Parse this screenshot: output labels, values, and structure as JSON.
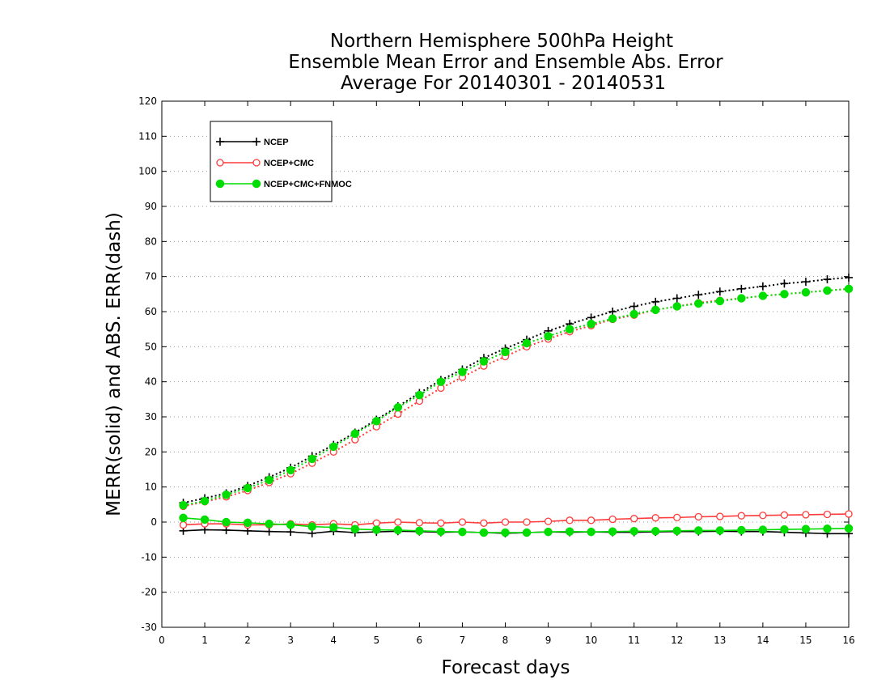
{
  "chart_data": {
    "type": "line",
    "title_lines": [
      "Northern Hemisphere 500hPa Height",
      "Ensemble Mean Error and Ensemble Abs. Error",
      "Average For 20140301 - 20140531"
    ],
    "xlabel": "Forecast days",
    "ylabel": "MERR(solid) and ABS. ERR(dash)",
    "xlim": [
      0,
      16
    ],
    "ylim": [
      -30,
      120
    ],
    "xticks": [
      "0",
      "1",
      "2",
      "3",
      "4",
      "5",
      "6",
      "7",
      "8",
      "9",
      "10",
      "11",
      "12",
      "13",
      "14",
      "15",
      "16"
    ],
    "yticks": [
      "-30",
      "-20",
      "-10",
      "0",
      "10",
      "20",
      "30",
      "40",
      "50",
      "60",
      "70",
      "80",
      "90",
      "100",
      "110",
      "120"
    ],
    "grid": "dotted horizontal",
    "legend_position": "top-left",
    "x": [
      0.5,
      1,
      1.5,
      2,
      2.5,
      3,
      3.5,
      4,
      4.5,
      5,
      5.5,
      6,
      6.5,
      7,
      7.5,
      8,
      8.5,
      9,
      9.5,
      10,
      10.5,
      11,
      11.5,
      12,
      12.5,
      13,
      13.5,
      14,
      14.5,
      15,
      15.5,
      16
    ],
    "series": [
      {
        "name": "NCEP",
        "color": "#000000",
        "marker": "plus",
        "merr": [
          -2.5,
          -2.2,
          -2.3,
          -2.5,
          -2.7,
          -2.8,
          -3.2,
          -2.6,
          -3.0,
          -2.8,
          -2.6,
          -2.7,
          -2.9,
          -2.8,
          -3.0,
          -3.2,
          -3.0,
          -2.8,
          -2.9,
          -2.8,
          -2.9,
          -2.9,
          -2.8,
          -2.7,
          -2.7,
          -2.6,
          -2.7,
          -2.7,
          -2.9,
          -3.1,
          -3.3,
          -3.3
        ],
        "abs_err": [
          5.5,
          6.8,
          8.2,
          10.3,
          12.8,
          15.5,
          18.8,
          22.0,
          25.5,
          29.2,
          33.0,
          36.8,
          40.5,
          43.5,
          46.8,
          49.5,
          52.0,
          54.5,
          56.5,
          58.3,
          60.0,
          61.5,
          62.8,
          63.8,
          64.8,
          65.7,
          66.5,
          67.2,
          68.0,
          68.5,
          69.2,
          69.7
        ]
      },
      {
        "name": "NCEP+CMC",
        "color": "#ff3b3b",
        "marker": "open-circle",
        "merr": [
          -0.8,
          -0.5,
          -0.5,
          -0.8,
          -0.8,
          -0.5,
          -0.8,
          -0.5,
          -0.8,
          -0.3,
          0.0,
          -0.2,
          -0.3,
          0.0,
          -0.3,
          0.0,
          0.0,
          0.2,
          0.5,
          0.5,
          0.8,
          1.0,
          1.2,
          1.3,
          1.5,
          1.6,
          1.8,
          1.9,
          2.0,
          2.1,
          2.2,
          2.3
        ],
        "abs_err": [
          4.5,
          5.8,
          7.2,
          9.0,
          11.3,
          13.8,
          16.8,
          20.0,
          23.5,
          27.2,
          30.8,
          34.5,
          38.2,
          41.3,
          44.5,
          47.2,
          50.0,
          52.2,
          54.3,
          56.0,
          57.8,
          59.0,
          60.5,
          61.5,
          62.5,
          63.2,
          63.8,
          64.5,
          65.0,
          65.5,
          66.0,
          66.5
        ]
      },
      {
        "name": "NCEP+CMC+FNMOC",
        "color": "#00dd00",
        "marker": "filled-circle",
        "merr": [
          1.2,
          0.7,
          0.0,
          -0.2,
          -0.5,
          -0.8,
          -1.3,
          -1.5,
          -2.0,
          -2.2,
          -2.3,
          -2.5,
          -2.7,
          -2.8,
          -3.0,
          -3.0,
          -3.0,
          -2.8,
          -2.7,
          -2.8,
          -2.7,
          -2.6,
          -2.6,
          -2.5,
          -2.4,
          -2.4,
          -2.3,
          -2.2,
          -2.1,
          -2.0,
          -1.9,
          -1.8
        ],
        "abs_err": [
          4.8,
          6.0,
          7.8,
          9.7,
          12.0,
          14.8,
          18.0,
          21.5,
          25.2,
          28.8,
          32.7,
          36.2,
          40.0,
          42.8,
          45.8,
          48.5,
          51.0,
          53.0,
          55.0,
          56.5,
          58.0,
          59.3,
          60.5,
          61.5,
          62.3,
          63.0,
          63.8,
          64.5,
          65.0,
          65.5,
          66.0,
          66.5
        ]
      }
    ]
  }
}
